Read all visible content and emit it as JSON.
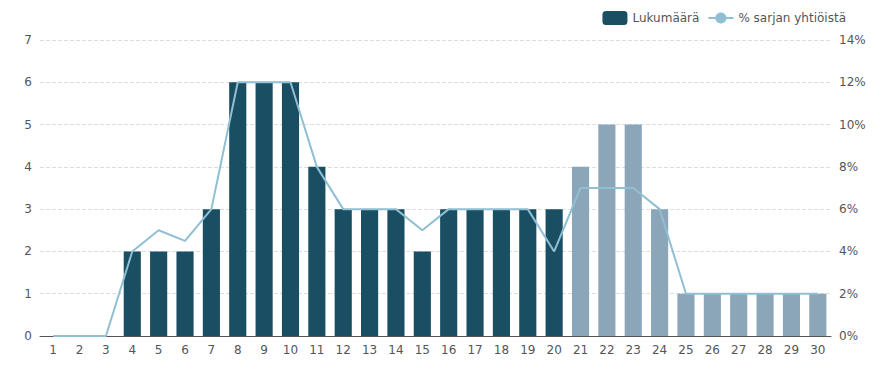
{
  "chart_data": {
    "type": "bar",
    "categories": [
      "1",
      "2",
      "3",
      "4",
      "5",
      "6",
      "7",
      "8",
      "9",
      "10",
      "11",
      "12",
      "13",
      "14",
      "15",
      "16",
      "17",
      "18",
      "19",
      "20",
      "21",
      "22",
      "23",
      "24",
      "25",
      "26",
      "27",
      "28",
      "29",
      "30"
    ],
    "series": [
      {
        "name": "Lukumäärä",
        "type": "bar",
        "color": "#1a4f63",
        "colors": [
          "#1a4f63",
          "#1a4f63",
          "#1a4f63",
          "#1a4f63",
          "#1a4f63",
          "#1a4f63",
          "#1a4f63",
          "#1a4f63",
          "#1a4f63",
          "#1a4f63",
          "#1a4f63",
          "#1a4f63",
          "#1a4f63",
          "#1a4f63",
          "#1a4f63",
          "#1a4f63",
          "#1a4f63",
          "#1a4f63",
          "#1a4f63",
          "#1a4f63",
          "#8ba6b8",
          "#8ba6b8",
          "#8ba6b8",
          "#8ba6b8",
          "#8ba6b8",
          "#8ba6b8",
          "#8ba6b8",
          "#8ba6b8",
          "#8ba6b8",
          "#8ba6b8"
        ],
        "values": [
          0,
          0,
          0,
          2,
          2,
          2,
          3,
          6,
          6,
          6,
          4,
          3,
          3,
          3,
          2,
          3,
          3,
          3,
          3,
          3,
          4,
          5,
          5,
          3,
          1,
          1,
          1,
          1,
          1,
          1
        ]
      },
      {
        "name": "% sarjan yhtiöistä",
        "type": "line",
        "color": "#90bfd4",
        "axis": "y2",
        "values": [
          0,
          0,
          0,
          0.04,
          0.05,
          0.045,
          0.06,
          0.12,
          0.12,
          0.12,
          0.08,
          0.06,
          0.06,
          0.06,
          0.05,
          0.06,
          0.06,
          0.06,
          0.06,
          0.04,
          0.07,
          0.07,
          0.07,
          0.06,
          0.02,
          0.02,
          0.02,
          0.02,
          0.02,
          0.02
        ]
      }
    ],
    "ylim": [
      0,
      7
    ],
    "yticks": [
      0,
      1,
      2,
      3,
      4,
      5,
      6,
      7
    ],
    "y2lim": [
      0,
      0.14
    ],
    "y2ticks": [
      {
        "value": 0,
        "label": "0%"
      },
      {
        "value": 0.02,
        "label": "2%"
      },
      {
        "value": 0.04,
        "label": "4%"
      },
      {
        "value": 0.06,
        "label": "6%"
      },
      {
        "value": 0.08,
        "label": "8%"
      },
      {
        "value": 0.1,
        "label": "10%"
      },
      {
        "value": 0.12,
        "label": "12%"
      },
      {
        "value": 0.14,
        "label": "14%"
      }
    ],
    "grid": true,
    "legend": "upper right"
  }
}
